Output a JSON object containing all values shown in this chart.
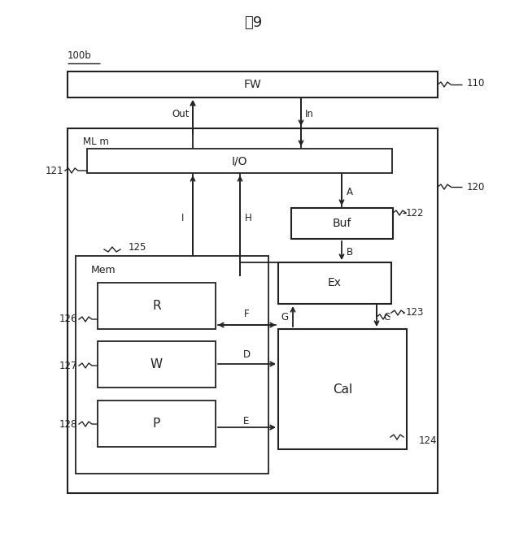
{
  "title": "围9",
  "background": "#ffffff",
  "fig_width": 6.22,
  "fig_height": 6.77,
  "dpi": 100,
  "label_100b": "100b",
  "label_110": "110",
  "label_120": "120",
  "label_121": "121",
  "label_122": "122",
  "label_123": "123",
  "label_124": "124",
  "label_125": "125",
  "label_126": "126",
  "label_127": "127",
  "label_128": "128",
  "box_fw": "FW",
  "box_io": "I/O",
  "box_buf": "Buf",
  "box_ex": "Ex",
  "box_cal": "Cal",
  "box_r": "R",
  "box_w": "W",
  "box_p": "P",
  "box_mem": "Mem",
  "box_mlm": "ML m",
  "lbl_out": "Out",
  "lbl_in": "In",
  "lbl_a": "A",
  "lbl_b": "B",
  "lbl_c": "C",
  "lbl_d": "D",
  "lbl_e": "E",
  "lbl_f": "F",
  "lbl_g": "G",
  "lbl_h": "H",
  "lbl_i": "I",
  "lc": "#222222",
  "bf": "#ffffff"
}
